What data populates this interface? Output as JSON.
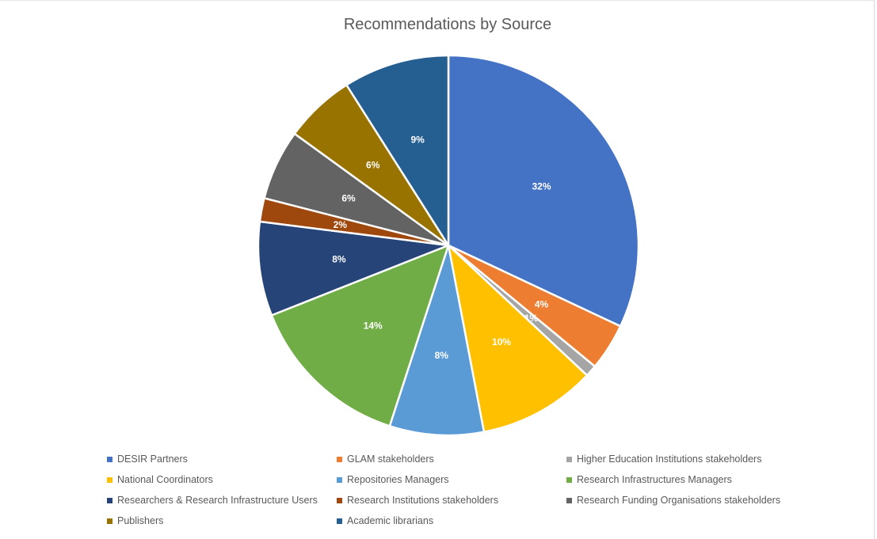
{
  "chart_data": {
    "type": "pie",
    "title": "Recommendations by Source",
    "slices": [
      {
        "name": "DESIR Partners",
        "value": 32,
        "label": "32%",
        "color": "#4472C4"
      },
      {
        "name": "GLAM stakeholders",
        "value": 4,
        "label": "4%",
        "color": "#ED7D31"
      },
      {
        "name": "Higher Education Institutions stakeholders",
        "value": 1,
        "label": "1%",
        "color": "#A5A5A5"
      },
      {
        "name": "National Coordinators",
        "value": 10,
        "label": "10%",
        "color": "#FFC000"
      },
      {
        "name": "Repositories Managers",
        "value": 8,
        "label": "8%",
        "color": "#5B9BD5"
      },
      {
        "name": "Research Infrastructures Managers",
        "value": 14,
        "label": "14%",
        "color": "#70AD47"
      },
      {
        "name": "Researchers & Research Infrastructure Users",
        "value": 8,
        "label": "8%",
        "color": "#264478"
      },
      {
        "name": "Research Institutions stakeholders",
        "value": 2,
        "label": "2%",
        "color": "#9E480E"
      },
      {
        "name": "Research Funding Organisations stakeholders",
        "value": 6,
        "label": "6%",
        "color": "#636363"
      },
      {
        "name": "Publishers",
        "value": 6,
        "label": "6%",
        "color": "#997300"
      },
      {
        "name": "Academic librarians",
        "value": 9,
        "label": "9%",
        "color": "#255E91"
      }
    ],
    "legend_position": "bottom"
  }
}
